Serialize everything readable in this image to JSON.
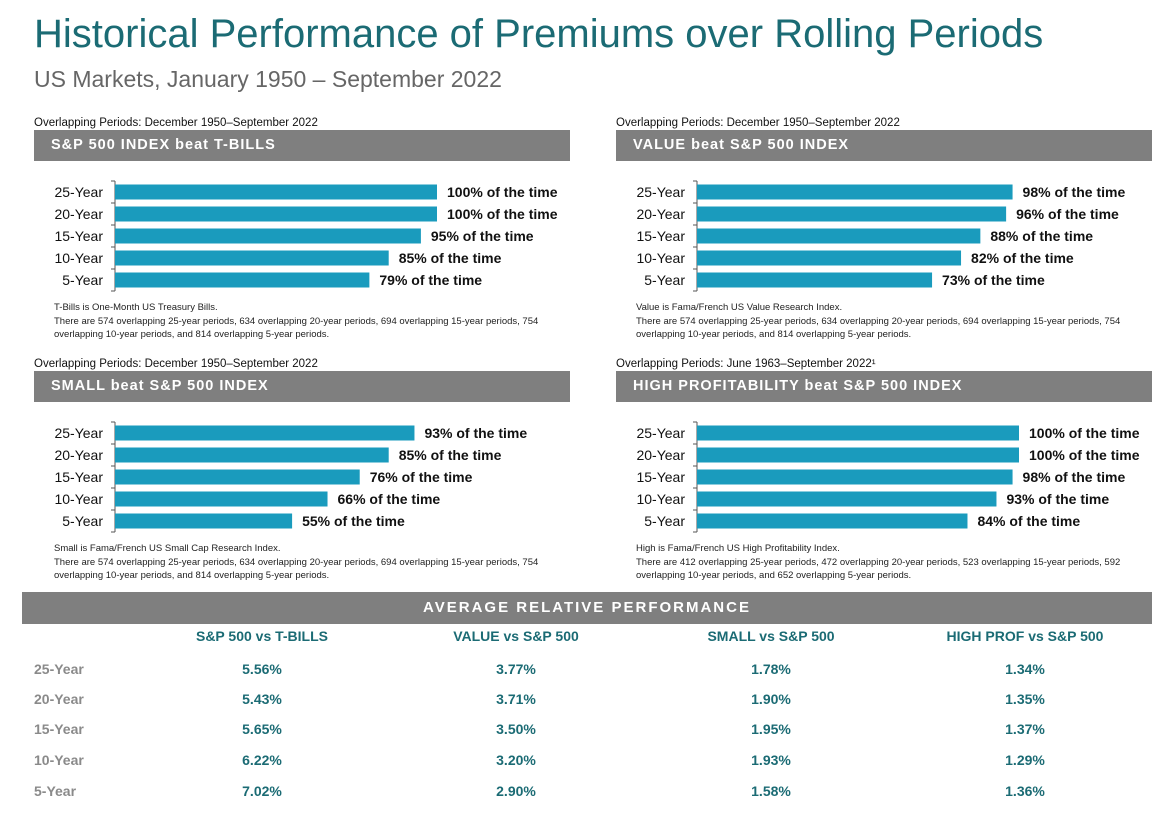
{
  "title": "Historical Performance of Premiums over Rolling Periods",
  "subtitle": "US Markets, January 1950 – September 2022",
  "colors": {
    "bar": "#1a9bbd",
    "band": "#7f7f7f",
    "accent": "#1b6b74"
  },
  "chart_data": [
    {
      "type": "bar",
      "orientation": "horizontal",
      "period_label": "Overlapping Periods: December 1950–September 2022",
      "title": "S&P 500 INDEX beat T-BILLS",
      "categories": [
        "25-Year",
        "20-Year",
        "15-Year",
        "10-Year",
        "5-Year"
      ],
      "values": [
        100,
        100,
        95,
        85,
        79
      ],
      "value_labels": [
        "100% of the time",
        "100% of the time",
        "95% of the time",
        "85% of the time",
        "79% of the time"
      ],
      "xlim": [
        0,
        100
      ],
      "notes": [
        "T-Bills is One-Month US Treasury Bills.",
        "There are 574 overlapping 25-year periods, 634 overlapping 20-year periods, 694 overlapping 15-year periods, 754 overlapping 10-year periods, and 814 overlapping 5-year periods."
      ]
    },
    {
      "type": "bar",
      "orientation": "horizontal",
      "period_label": "Overlapping Periods: December 1950–September 2022",
      "title": "VALUE beat S&P 500 INDEX",
      "categories": [
        "25-Year",
        "20-Year",
        "15-Year",
        "10-Year",
        "5-Year"
      ],
      "values": [
        98,
        96,
        88,
        82,
        73
      ],
      "value_labels": [
        "98% of the time",
        "96% of the time",
        "88% of the time",
        "82% of the time",
        "73% of the time"
      ],
      "xlim": [
        0,
        100
      ],
      "notes": [
        "Value is Fama/French US Value Research Index.",
        "There are 574 overlapping 25-year periods, 634 overlapping 20-year periods, 694 overlapping 15-year periods, 754 overlapping 10-year periods, and 814 overlapping 5-year periods."
      ]
    },
    {
      "type": "bar",
      "orientation": "horizontal",
      "period_label": "Overlapping Periods: December 1950–September 2022",
      "title": "SMALL beat S&P 500 INDEX",
      "categories": [
        "25-Year",
        "20-Year",
        "15-Year",
        "10-Year",
        "5-Year"
      ],
      "values": [
        93,
        85,
        76,
        66,
        55
      ],
      "value_labels": [
        "93% of the time",
        "85% of the time",
        "76% of the time",
        "66% of the time",
        "55% of the time"
      ],
      "xlim": [
        0,
        100
      ],
      "notes": [
        "Small is Fama/French US Small Cap Research Index.",
        "There are 574 overlapping 25-year periods, 634 overlapping 20-year periods, 694 overlapping 15-year periods, 754 overlapping 10-year periods, and 814 overlapping 5-year periods."
      ]
    },
    {
      "type": "bar",
      "orientation": "horizontal",
      "period_label": "Overlapping Periods: June 1963–September 2022¹",
      "title": "HIGH PROFITABILITY beat S&P 500 INDEX",
      "categories": [
        "25-Year",
        "20-Year",
        "15-Year",
        "10-Year",
        "5-Year"
      ],
      "values": [
        100,
        100,
        98,
        93,
        84
      ],
      "value_labels": [
        "100% of the time",
        "100% of the time",
        "98% of the time",
        "93% of the time",
        "84% of the time"
      ],
      "xlim": [
        0,
        100
      ],
      "notes": [
        "High is Fama/French US High Profitability Index.",
        "There are 412 overlapping 25-year periods, 472 overlapping 20-year periods, 523 overlapping 15-year periods, 592 overlapping 10-year periods, and 652 overlapping 5-year periods."
      ]
    },
    {
      "type": "table",
      "title": "AVERAGE RELATIVE PERFORMANCE",
      "columns": [
        "S&P 500 vs T-BILLS",
        "VALUE vs S&P 500",
        "SMALL vs S&P 500",
        "HIGH PROF vs S&P 500"
      ],
      "rows": [
        {
          "label": "25-Year",
          "values": [
            "5.56%",
            "3.77%",
            "1.78%",
            "1.34%"
          ]
        },
        {
          "label": "20-Year",
          "values": [
            "5.43%",
            "3.71%",
            "1.90%",
            "1.35%"
          ]
        },
        {
          "label": "15-Year",
          "values": [
            "5.65%",
            "3.50%",
            "1.95%",
            "1.37%"
          ]
        },
        {
          "label": "10-Year",
          "values": [
            "6.22%",
            "3.20%",
            "1.93%",
            "1.29%"
          ]
        },
        {
          "label": "5-Year",
          "values": [
            "7.02%",
            "2.90%",
            "1.58%",
            "1.36%"
          ]
        }
      ]
    }
  ]
}
